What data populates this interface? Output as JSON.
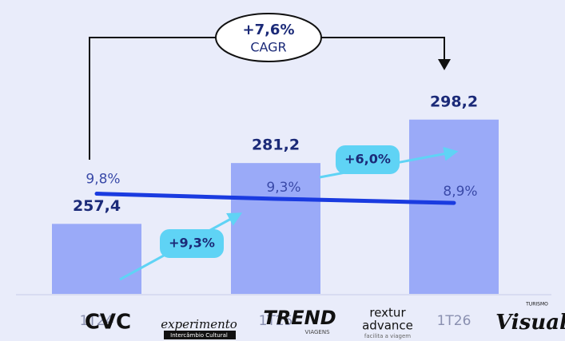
{
  "chart_data": {
    "type": "bar",
    "categories": [
      "1T24",
      "1T25",
      "1T26"
    ],
    "values": [
      257.4,
      281.2,
      298.2
    ],
    "value_labels": [
      "257,4",
      "281,2",
      "298,2"
    ],
    "color": "#9aaaf8",
    "ylim": [
      230,
      310
    ],
    "y2lim": [
      0,
      20
    ],
    "series": [
      {
        "type": "line",
        "axis": "y2",
        "color": "#1a3be0",
        "values": [
          9.8,
          9.3,
          8.9
        ],
        "value_labels": [
          "9,8%",
          "9,3%",
          "8,9%"
        ]
      }
    ],
    "annotations": {
      "cagr_value": "+7,6%",
      "cagr_label": "CAGR",
      "growth": [
        "+9,3%",
        "+6,0%"
      ]
    },
    "logos": [
      "CVC",
      "experimento",
      "Intercâmbio Cultural",
      "TREND",
      "VIAGENS",
      "rextur",
      "advance",
      "facilita a viagem",
      "TURISMO",
      "Visual"
    ]
  }
}
